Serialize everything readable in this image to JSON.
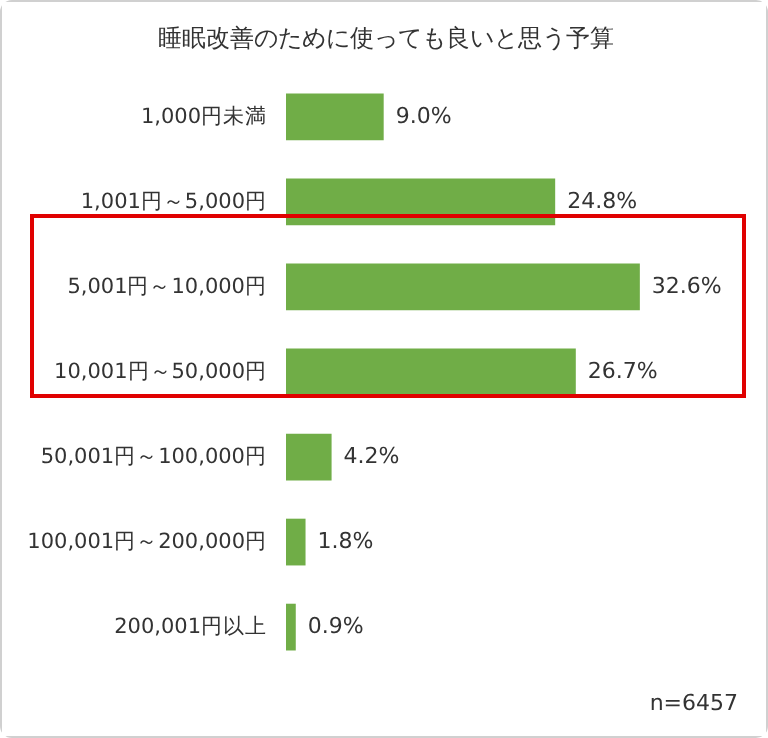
{
  "chart_data": {
    "type": "bar",
    "orientation": "horizontal",
    "title": "睡眠改善のために使っても良いと思う予算",
    "categories": [
      "1,000円未満",
      "1,001円～5,000円",
      "5,001円～10,000円",
      "10,001円～50,000円",
      "50,001円～100,000円",
      "100,001円～200,000円",
      "200,001円以上"
    ],
    "values": [
      9.0,
      24.8,
      32.6,
      26.7,
      4.2,
      1.8,
      0.9
    ],
    "value_labels": [
      "9.0%",
      "24.8%",
      "32.6%",
      "26.7%",
      "4.2%",
      "1.8%",
      "0.9%"
    ],
    "color": "#70ad47",
    "annotations": [
      "n=6457"
    ]
  }
}
